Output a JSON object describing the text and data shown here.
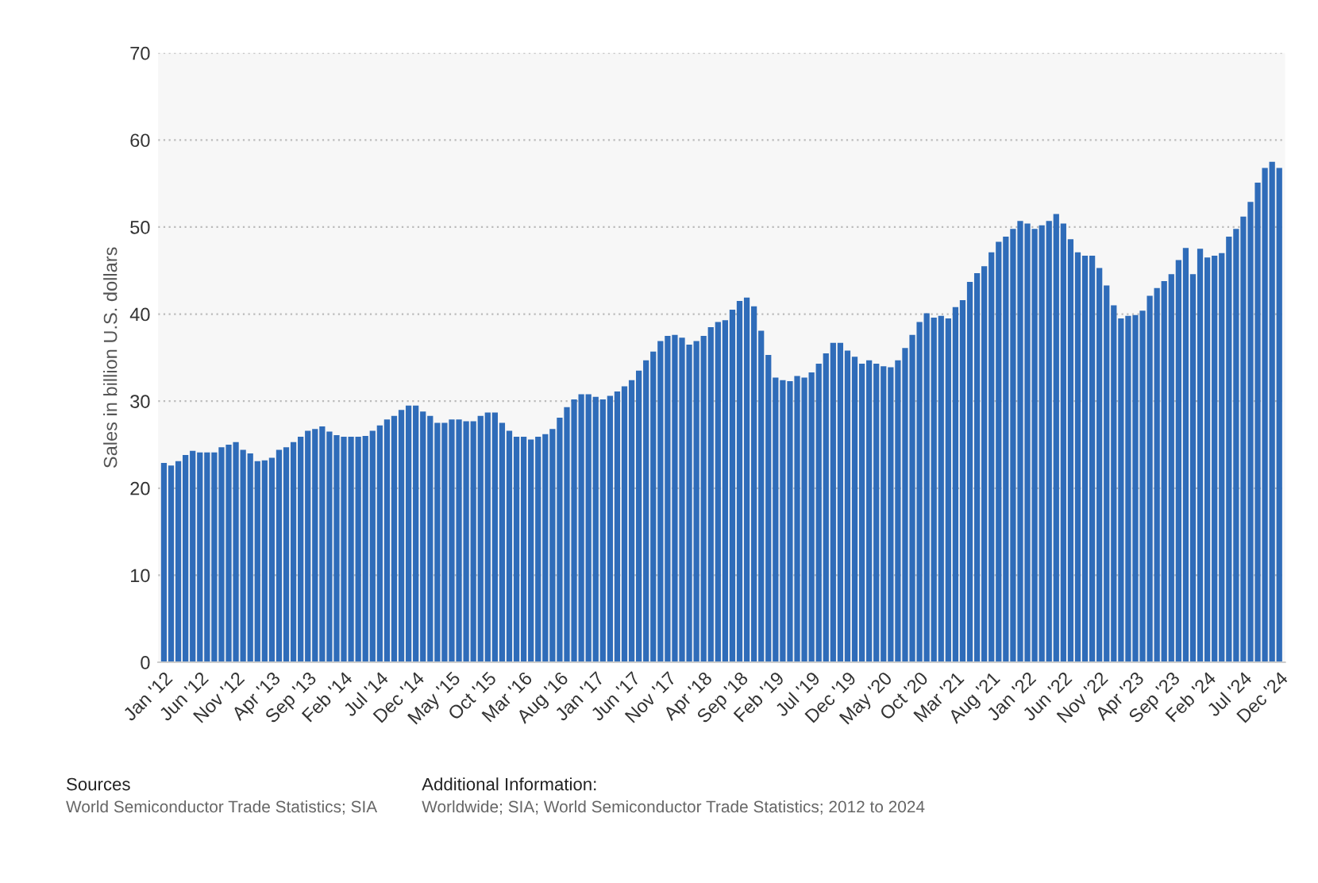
{
  "chart_data": {
    "type": "bar",
    "ylabel": "Sales in billion U.S. dollars",
    "categories": [
      "Jan '12",
      null,
      null,
      null,
      null,
      "Jun '12",
      null,
      null,
      null,
      null,
      "Nov '12",
      null,
      null,
      null,
      null,
      "Apr '13",
      null,
      null,
      null,
      null,
      "Sep '13",
      null,
      null,
      null,
      null,
      "Feb '14",
      null,
      null,
      null,
      null,
      "Jul '14",
      null,
      null,
      null,
      null,
      "Dec '14",
      null,
      null,
      null,
      null,
      "May '15",
      null,
      null,
      null,
      null,
      "Oct '15",
      null,
      null,
      null,
      null,
      "Mar '16",
      null,
      null,
      null,
      null,
      "Aug '16",
      null,
      null,
      null,
      null,
      "Jan '17",
      null,
      null,
      null,
      null,
      "Jun '17",
      null,
      null,
      null,
      null,
      "Nov '17",
      null,
      null,
      null,
      null,
      "Apr '18",
      null,
      null,
      null,
      null,
      "Sep '18",
      null,
      null,
      null,
      null,
      "Feb '19",
      null,
      null,
      null,
      null,
      "Jul '19",
      null,
      null,
      null,
      null,
      "Dec '19",
      null,
      null,
      null,
      null,
      "May '20",
      null,
      null,
      null,
      null,
      "Oct '20",
      null,
      null,
      null,
      null,
      "Mar '21",
      null,
      null,
      null,
      null,
      "Aug '21",
      null,
      null,
      null,
      null,
      "Jan '22",
      null,
      null,
      null,
      null,
      "Jun '22",
      null,
      null,
      null,
      null,
      "Nov '22",
      null,
      null,
      null,
      null,
      "Apr '23",
      null,
      null,
      null,
      null,
      "Sep '23",
      null,
      null,
      null,
      null,
      "Feb '24",
      null,
      null,
      null,
      null,
      "Jul '24",
      null,
      null,
      null,
      null,
      "Dec '24"
    ],
    "values": [
      22.9,
      22.6,
      23.1,
      23.8,
      24.3,
      24.1,
      24.1,
      24.1,
      24.7,
      25.0,
      25.3,
      24.4,
      24.0,
      23.1,
      23.2,
      23.5,
      24.4,
      24.7,
      25.3,
      25.9,
      26.6,
      26.8,
      27.1,
      26.5,
      26.1,
      25.9,
      25.9,
      25.9,
      26.0,
      26.6,
      27.2,
      27.9,
      28.3,
      29.0,
      29.5,
      29.5,
      28.8,
      28.3,
      27.5,
      27.5,
      27.9,
      27.9,
      27.7,
      27.7,
      28.3,
      28.7,
      28.7,
      27.5,
      26.6,
      25.9,
      25.9,
      25.6,
      25.9,
      26.2,
      26.8,
      28.1,
      29.3,
      30.2,
      30.8,
      30.8,
      30.5,
      30.2,
      30.6,
      31.1,
      31.7,
      32.4,
      33.5,
      34.7,
      35.7,
      36.9,
      37.5,
      37.6,
      37.3,
      36.5,
      36.9,
      37.5,
      38.5,
      39.1,
      39.3,
      40.5,
      41.5,
      41.9,
      40.9,
      38.1,
      35.3,
      32.7,
      32.4,
      32.3,
      32.9,
      32.7,
      33.3,
      34.3,
      35.5,
      36.7,
      36.7,
      35.8,
      35.1,
      34.3,
      34.7,
      34.3,
      34.0,
      33.9,
      34.7,
      36.1,
      37.6,
      39.1,
      40.1,
      39.6,
      39.8,
      39.5,
      40.8,
      41.6,
      43.7,
      44.7,
      45.5,
      47.1,
      48.3,
      48.9,
      49.8,
      50.7,
      50.4,
      49.8,
      50.2,
      50.7,
      51.5,
      50.4,
      48.6,
      47.1,
      46.7,
      46.7,
      45.3,
      43.3,
      41.0,
      39.5,
      39.8,
      39.9,
      40.4,
      42.1,
      43.0,
      43.8,
      44.6,
      46.2,
      47.6,
      44.6,
      47.5,
      46.5,
      46.7,
      47.0,
      48.9,
      49.8,
      51.2,
      52.9,
      55.1,
      56.8,
      57.5,
      56.8
    ],
    "color": "#2f6cb9",
    "ylim": [
      0,
      70
    ],
    "yticks": [
      0,
      10,
      20,
      30,
      40,
      50,
      60,
      70
    ],
    "grid": "y",
    "annotations": [
      "Sources",
      "World Semiconductor Trade Statistics; SIA",
      "Additional Information:",
      "Worldwide; SIA; World Semiconductor Trade Statistics; 2012 to 2024"
    ]
  }
}
